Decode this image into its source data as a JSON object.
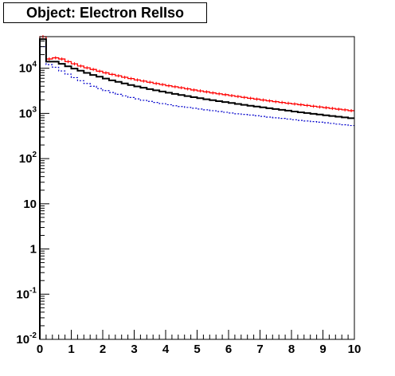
{
  "title": "Object: Electron RelIso",
  "chart_data": {
    "type": "line",
    "style": "step-histogram",
    "title": "Object: Electron RelIso",
    "xlabel": "",
    "ylabel": "",
    "xlim": [
      0,
      10
    ],
    "ylim": [
      0.01,
      50000
    ],
    "yscale": "log",
    "grid": false,
    "x_ticks": [
      "0",
      "1",
      "2",
      "3",
      "4",
      "5",
      "6",
      "7",
      "8",
      "9",
      "10"
    ],
    "y_ticks": [
      {
        "base": "10",
        "exp": "-2"
      },
      {
        "base": "10",
        "exp": "-1"
      },
      {
        "base": "1",
        "exp": ""
      },
      {
        "base": "10",
        "exp": ""
      },
      {
        "base": "10",
        "exp": "2"
      },
      {
        "base": "10",
        "exp": "3"
      },
      {
        "base": "10",
        "exp": "4"
      }
    ],
    "bin_width": 0.2,
    "series": [
      {
        "color": "#ff0000",
        "line_style": "solid-with-error-ticks",
        "values": [
          50000,
          16000,
          17000,
          16000,
          14000,
          12500,
          11200,
          10200,
          9400,
          8600,
          7900,
          7300,
          6800,
          6300,
          5900,
          5500,
          5200,
          4900,
          4600,
          4350,
          4100,
          3900,
          3700,
          3500,
          3300,
          3150,
          3000,
          2850,
          2720,
          2600,
          2480,
          2370,
          2260,
          2160,
          2070,
          1980,
          1900,
          1820,
          1750,
          1680,
          1620,
          1560,
          1500,
          1440,
          1390,
          1340,
          1290,
          1240,
          1200,
          1150
        ]
      },
      {
        "color": "#000000",
        "line_style": "solid-thick",
        "values": [
          44000,
          14000,
          14000,
          12500,
          11000,
          9800,
          8800,
          7900,
          7100,
          6500,
          5900,
          5400,
          5000,
          4600,
          4250,
          3950,
          3700,
          3450,
          3250,
          3050,
          2870,
          2700,
          2560,
          2420,
          2290,
          2170,
          2060,
          1960,
          1870,
          1780,
          1700,
          1620,
          1550,
          1480,
          1420,
          1360,
          1300,
          1250,
          1200,
          1150,
          1100,
          1060,
          1020,
          980,
          945,
          910,
          875,
          845,
          815,
          785
        ]
      },
      {
        "color": "#0000cc",
        "line_style": "dotted",
        "values": [
          30000,
          12000,
          10500,
          8700,
          7400,
          6200,
          5300,
          4600,
          4000,
          3550,
          3200,
          2900,
          2650,
          2450,
          2250,
          2100,
          1950,
          1850,
          1750,
          1650,
          1560,
          1480,
          1420,
          1360,
          1300,
          1250,
          1200,
          1150,
          1100,
          1060,
          1020,
          980,
          950,
          920,
          890,
          860,
          830,
          800,
          775,
          750,
          725,
          700,
          680,
          660,
          640,
          620,
          600,
          580,
          560,
          540
        ]
      }
    ]
  }
}
